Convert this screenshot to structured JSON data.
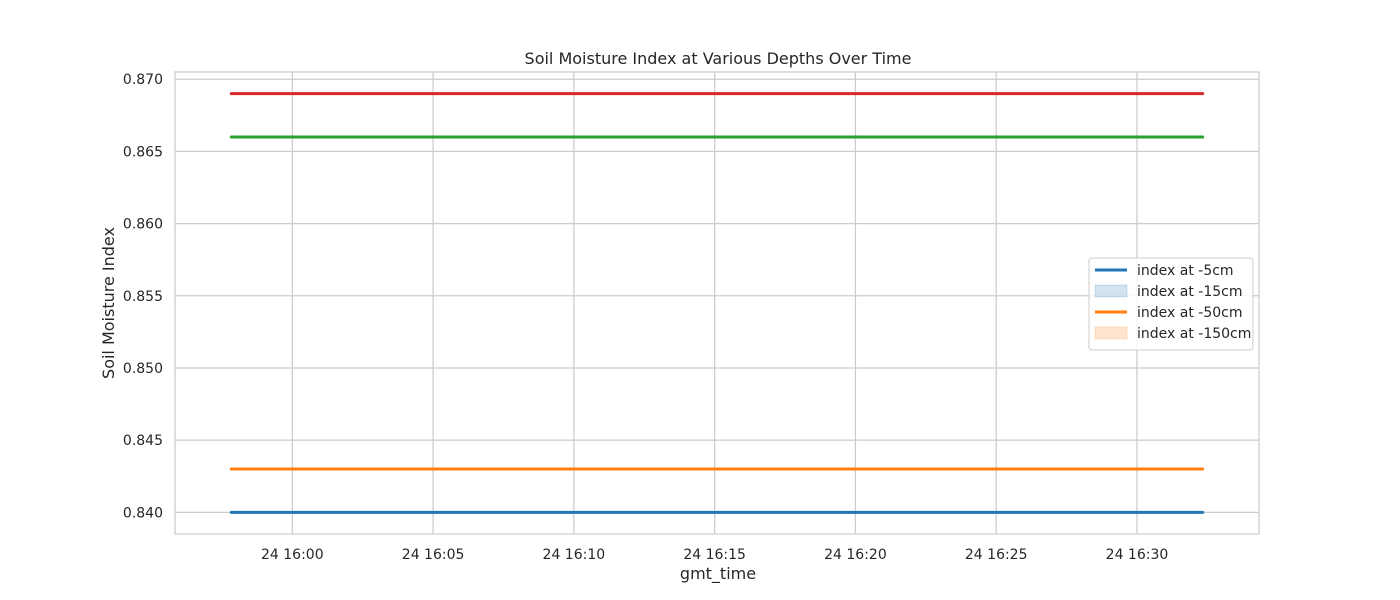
{
  "chart_data": {
    "type": "line",
    "title": "Soil Moisture Index at Various Depths Over Time",
    "xlabel": "gmt_time",
    "ylabel": "Soil Moisture Index",
    "x_start": "24 15:57:50",
    "x_end": "24 16:32:20",
    "x_ticks": [
      "24 16:00",
      "24 16:05",
      "24 16:10",
      "24 16:15",
      "24 16:20",
      "24 16:25",
      "24 16:30"
    ],
    "xlim": [
      "24 15:55:50",
      "24 16:34:20"
    ],
    "ylim": [
      0.8385,
      0.8705
    ],
    "y_ticks": [
      "0.840",
      "0.845",
      "0.850",
      "0.855",
      "0.860",
      "0.865",
      "0.870"
    ],
    "grid": true,
    "series": [
      {
        "color": "#1f77b4",
        "values": [
          0.84,
          0.84
        ]
      },
      {
        "color": "#ff7f0e",
        "values": [
          0.843,
          0.843
        ]
      },
      {
        "color": "#2ca02c",
        "values": [
          0.866,
          0.866
        ]
      },
      {
        "color": "#d62728",
        "values": [
          0.869,
          0.869
        ]
      }
    ],
    "legend": {
      "position": "center-right",
      "entries": [
        {
          "label": "index at -5cm",
          "style": "line",
          "color": "#1f77b4"
        },
        {
          "label": "index at -15cm",
          "style": "patch",
          "color": "#1f77b4"
        },
        {
          "label": "index at -50cm",
          "style": "line",
          "color": "#ff7f0e"
        },
        {
          "label": "index at -150cm",
          "style": "patch",
          "color": "#ff7f0e"
        }
      ]
    }
  }
}
